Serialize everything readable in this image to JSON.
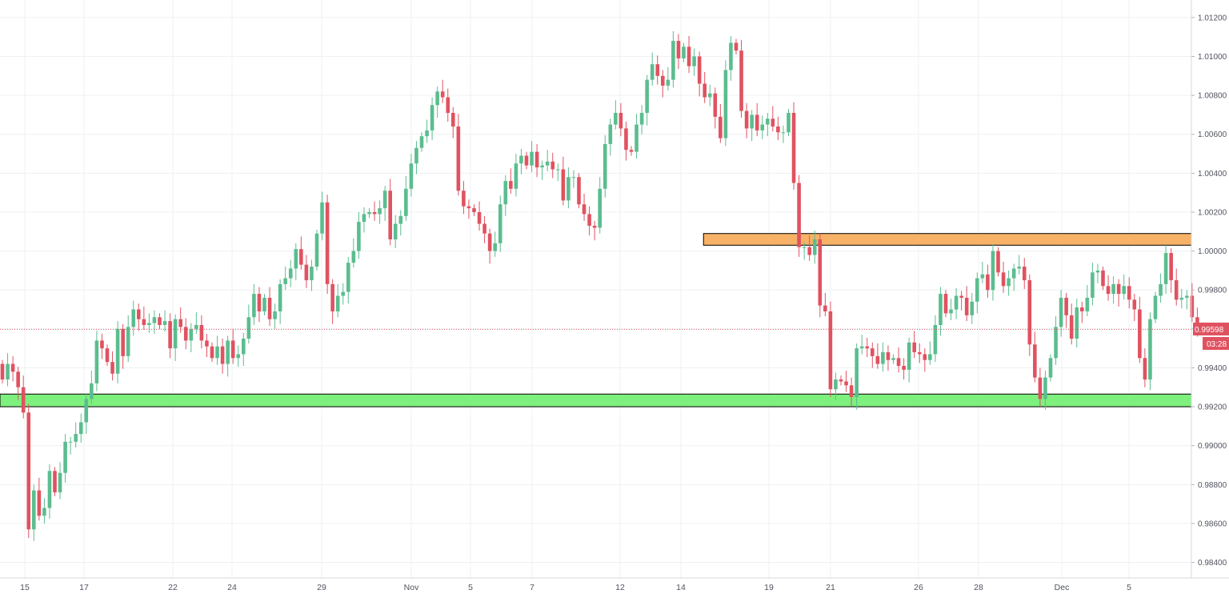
{
  "chart_data": {
    "type": "candlestick",
    "title": "",
    "xlabel": "",
    "ylabel": "",
    "ylim": [
      0.9832,
      1.0129
    ],
    "grid": true,
    "x_tick_labels": [
      "15",
      "17",
      "22",
      "24",
      "29",
      "Nov",
      "5",
      "7",
      "12",
      "14",
      "19",
      "21",
      "26",
      "28",
      "Dec",
      "5"
    ],
    "y_tick_labels": [
      "1.01200",
      "1.01000",
      "1.00800",
      "1.00600",
      "1.00400",
      "1.00200",
      "1.00000",
      "0.99800",
      "0.99600",
      "0.99400",
      "0.99200",
      "0.99000",
      "0.98800",
      "0.98600",
      "0.98400"
    ],
    "y_ticks": [
      1.012,
      1.01,
      1.008,
      1.006,
      1.004,
      1.002,
      1.0,
      0.998,
      0.996,
      0.994,
      0.992,
      0.99,
      0.988,
      0.986,
      0.984
    ],
    "current_price": {
      "label": "0.99598",
      "value": 0.99598,
      "countdown": "03:28",
      "color": "#e05260"
    },
    "zones": [
      {
        "name": "resistance-zone",
        "low": 1.0003,
        "high": 1.0009,
        "x_start_index": 135,
        "color": "#f7b267"
      },
      {
        "name": "support-zone",
        "low": 0.992,
        "high": 0.99265,
        "x_start_index": 0,
        "color": "#7ef07e"
      }
    ],
    "colors": {
      "up": "#5bbd8f",
      "down": "#e05260",
      "grid": "#eef0f3",
      "axis_text": "#50535e"
    },
    "ohlc_start": 0.9942,
    "ohlc_close_path": [
      0.9934,
      0.9942,
      0.9938,
      0.993,
      0.9917,
      0.9857,
      0.9877,
      0.9864,
      0.9868,
      0.9887,
      0.9876,
      0.9886,
      0.9902,
      0.9902,
      0.9906,
      0.9912,
      0.9924,
      0.9932,
      0.9954,
      0.995,
      0.9943,
      0.9937,
      0.996,
      0.9946,
      0.9961,
      0.997,
      0.9965,
      0.9962,
      0.9963,
      0.9966,
      0.9962,
      0.9964,
      0.995,
      0.9965,
      0.9961,
      0.9954,
      0.996,
      0.9962,
      0.9954,
      0.9951,
      0.9945,
      0.9951,
      0.9942,
      0.9954,
      0.9945,
      0.9947,
      0.9955,
      0.9966,
      0.9978,
      0.9969,
      0.9976,
      0.9965,
      0.9969,
      0.9983,
      0.9986,
      0.9991,
      1.0001,
      0.9993,
      0.9985,
      0.9992,
      1.0009,
      1.0025,
      0.9983,
      0.9969,
      0.9977,
      0.9979,
      0.9994,
      1.0,
      1.0015,
      1.0019,
      1.002,
      1.0019,
      1.0022,
      1.0031,
      1.0006,
      1.0014,
      1.0018,
      1.0032,
      1.0045,
      1.0053,
      1.0059,
      1.0062,
      1.0075,
      1.0082,
      1.0079,
      1.0071,
      1.0064,
      1.0031,
      1.0023,
      1.0022,
      1.002,
      1.0014,
      1.0009,
      1.0,
      1.0004,
      1.0024,
      1.0036,
      1.0032,
      1.0045,
      1.0049,
      1.0044,
      1.0051,
      1.0043,
      1.0044,
      1.0046,
      1.0042,
      1.0042,
      1.0026,
      1.0038,
      1.0038,
      1.0024,
      1.0019,
      1.0013,
      1.0012,
      1.0032,
      1.0055,
      1.0065,
      1.0071,
      1.0063,
      1.0052,
      1.0051,
      1.0065,
      1.0071,
      1.0088,
      1.0096,
      1.009,
      1.0085,
      1.0088,
      1.0108,
      1.0099,
      1.0105,
      1.0095,
      1.01,
      1.0086,
      1.0079,
      1.0081,
      1.0069,
      1.0058,
      1.0093,
      1.0107,
      1.0103,
      1.0072,
      1.0063,
      1.007,
      1.0062,
      1.0065,
      1.0068,
      1.0064,
      1.0061,
      1.0061,
      1.0071,
      1.0035,
      1.0002,
      1.0002,
      0.9998,
      1.0006,
      0.9972,
      0.9969,
      0.9929,
      0.9934,
      0.9933,
      0.9931,
      0.9925,
      0.995,
      0.9951,
      0.995,
      0.9946,
      0.9942,
      0.9948,
      0.9944,
      0.9945,
      0.9941,
      0.9939,
      0.9953,
      0.9948,
      0.9947,
      0.9944,
      0.9947,
      0.9962,
      0.9978,
      0.9968,
      0.997,
      0.9977,
      0.9976,
      0.9967,
      0.9974,
      0.9986,
      0.9988,
      0.998,
      1.0,
      0.9989,
      0.9982,
      0.9986,
      0.9991,
      0.9992,
      0.9985,
      0.9952,
      0.9935,
      0.9924,
      0.9935,
      0.9945,
      0.9961,
      0.9976,
      0.9967,
      0.9955,
      0.9971,
      0.9969,
      0.9976,
      0.9989,
      0.999,
      0.9982,
      0.9978,
      0.9983,
      0.9978,
      0.9982,
      0.9975,
      0.997,
      0.9945,
      0.9934,
      0.9965,
      0.9977,
      0.9983,
      0.9999,
      0.9985,
      0.9975,
      0.9976,
      0.9977,
      0.9966,
      0.996
    ],
    "ohlc_wick": 0.0005
  }
}
